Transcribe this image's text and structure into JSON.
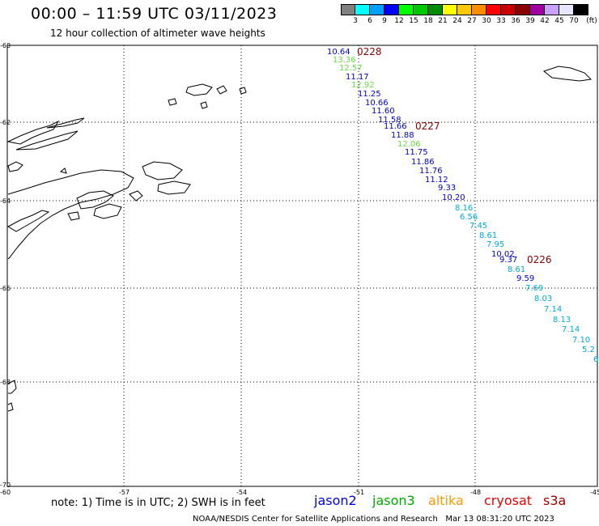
{
  "header": {
    "title": "00:00 – 11:59 UTC 03/11/2023",
    "subtitle": "12 hour collection of altimeter wave heights"
  },
  "legend": {
    "unit": "(ft)",
    "bins": [
      {
        "label": "3",
        "color": "#808080"
      },
      {
        "label": "6",
        "color": "#00ffff"
      },
      {
        "label": "9",
        "color": "#00a0ff"
      },
      {
        "label": "12",
        "color": "#0000ff"
      },
      {
        "label": "15",
        "color": "#00ff00"
      },
      {
        "label": "18",
        "color": "#00c800"
      },
      {
        "label": "21",
        "color": "#008c00"
      },
      {
        "label": "24",
        "color": "#ffff00"
      },
      {
        "label": "27",
        "color": "#ffc800"
      },
      {
        "label": "30",
        "color": "#ff8c00"
      },
      {
        "label": "33",
        "color": "#ff0000"
      },
      {
        "label": "36",
        "color": "#c80000"
      },
      {
        "label": "39",
        "color": "#8c0000"
      },
      {
        "label": "42",
        "color": "#a000a0"
      },
      {
        "label": "45",
        "color": "#c8a0ff"
      },
      {
        "label": "70",
        "color": "#e6e6ff"
      },
      {
        "label": "",
        "color": "#000000"
      }
    ]
  },
  "map": {
    "lat_labels": [
      "-60",
      "-62",
      "-64",
      "-66",
      "-68",
      "-70"
    ],
    "lon_labels": [
      "-60",
      "-57",
      "-54",
      "-51",
      "-48",
      "-45"
    ],
    "pass_labels": [
      "0228",
      "0227",
      "0226"
    ],
    "pass_label_color": "#8b0000",
    "observations": [
      {
        "v": "10.64",
        "c": "#0000cd"
      },
      {
        "v": "13.36",
        "c": "#66dd44"
      },
      {
        "v": "12.57",
        "c": "#66dd44"
      },
      {
        "v": "11.17",
        "c": "#0000cd"
      },
      {
        "v": "12.92",
        "c": "#66dd44"
      },
      {
        "v": "11.25",
        "c": "#0000cd"
      },
      {
        "v": "10.66",
        "c": "#0000cd"
      },
      {
        "v": "11.60",
        "c": "#0000cd"
      },
      {
        "v": "11.58",
        "c": "#0000cd"
      },
      {
        "v": "11.66",
        "c": "#0000cd"
      },
      {
        "v": "11.88",
        "c": "#0000cd"
      },
      {
        "v": "12.06",
        "c": "#66dd44"
      },
      {
        "v": "11.75",
        "c": "#0000cd"
      },
      {
        "v": "11.86",
        "c": "#0000cd"
      },
      {
        "v": "11.76",
        "c": "#0000cd"
      },
      {
        "v": "11.12",
        "c": "#0000cd"
      },
      {
        "v": "9.33",
        "c": "#0000cd"
      },
      {
        "v": "10.20",
        "c": "#0000cd"
      },
      {
        "v": "8.16",
        "c": "#00aadd"
      },
      {
        "v": "6.56",
        "c": "#00aadd"
      },
      {
        "v": "7.45",
        "c": "#00aadd"
      },
      {
        "v": "8.61",
        "c": "#00aadd"
      },
      {
        "v": "7.95",
        "c": "#00aadd"
      },
      {
        "v": "10.02",
        "c": "#0000cd"
      },
      {
        "v": "9.37",
        "c": "#0000cd"
      },
      {
        "v": "8.61",
        "c": "#00aadd"
      },
      {
        "v": "9.59",
        "c": "#0000cd"
      },
      {
        "v": "7.69",
        "c": "#00aadd"
      },
      {
        "v": "8.03",
        "c": "#00aadd"
      },
      {
        "v": "7.14",
        "c": "#00aadd"
      },
      {
        "v": "8.13",
        "c": "#00aadd"
      },
      {
        "v": "7.14",
        "c": "#00aadd"
      },
      {
        "v": "7.10",
        "c": "#00aadd"
      },
      {
        "v": "5.2",
        "c": "#00aadd"
      },
      {
        "v": "6",
        "c": "#00aadd"
      }
    ]
  },
  "footer": {
    "note": "note: 1) Time is in UTC; 2) SWH is in feet",
    "satellites": [
      {
        "name": "jason2",
        "color": "#0000ee"
      },
      {
        "name": "jason3",
        "color": "#00aa00"
      },
      {
        "name": "altika",
        "color": "#ff9900"
      },
      {
        "name": "cryosat",
        "color": "#ee0000"
      },
      {
        "name": "s3a",
        "color": "#a00000"
      }
    ],
    "credit": "NOAA/NESDIS Center for Satellite Applications and Research",
    "timestamp": "Mar 13 08:31:20 UTC 2023"
  }
}
